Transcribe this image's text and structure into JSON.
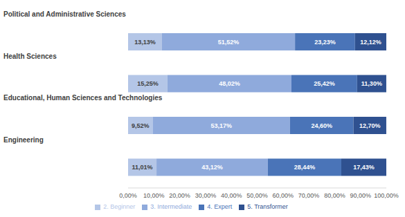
{
  "chart_data": {
    "type": "bar",
    "orientation": "horizontal",
    "stacked": true,
    "data_labels": true,
    "grid": false,
    "legend": "bottom",
    "categories": [
      "Political and Administrative Sciences",
      "Health Sciences",
      "Educational, Human Sciences and Technologies",
      "Engineering"
    ],
    "xlim": [
      0,
      100
    ],
    "xticks": [
      {
        "value": 0,
        "label": "0,00%"
      },
      {
        "value": 10,
        "label": "10,00%"
      },
      {
        "value": 20,
        "label": "20,00%"
      },
      {
        "value": 30,
        "label": "30,00%"
      },
      {
        "value": 40,
        "label": "40,00%"
      },
      {
        "value": 50,
        "label": "50,00%"
      },
      {
        "value": 60,
        "label": "60,00%"
      },
      {
        "value": 70,
        "label": "70,00%"
      },
      {
        "value": 80,
        "label": "80,00%"
      },
      {
        "value": 90,
        "label": "90,00%"
      },
      {
        "value": 100,
        "label": "100,00%"
      }
    ],
    "series": [
      {
        "name": "2. Beginner",
        "color": "#b4c6e7",
        "values": [
          13.13,
          15.25,
          9.52,
          11.01
        ],
        "value_labels": [
          "13,13%",
          "15,25%",
          "9,52%",
          "11,01%"
        ]
      },
      {
        "name": "3. Intermediate",
        "color": "#8faadc",
        "values": [
          51.52,
          48.02,
          53.17,
          43.12
        ],
        "value_labels": [
          "51,52%",
          "48,02%",
          "53,17%",
          "43,12%"
        ]
      },
      {
        "name": "4. Expert",
        "color": "#4a74b8",
        "values": [
          23.23,
          25.42,
          24.6,
          28.44
        ],
        "value_labels": [
          "23,23%",
          "25,42%",
          "24,60%",
          "28,44%"
        ]
      },
      {
        "name": "5. Transformer",
        "color": "#2f5190",
        "values": [
          12.12,
          11.3,
          12.7,
          17.43
        ],
        "value_labels": [
          "12,12%",
          "11,30%",
          "12,70%",
          "17,43%"
        ]
      }
    ]
  }
}
